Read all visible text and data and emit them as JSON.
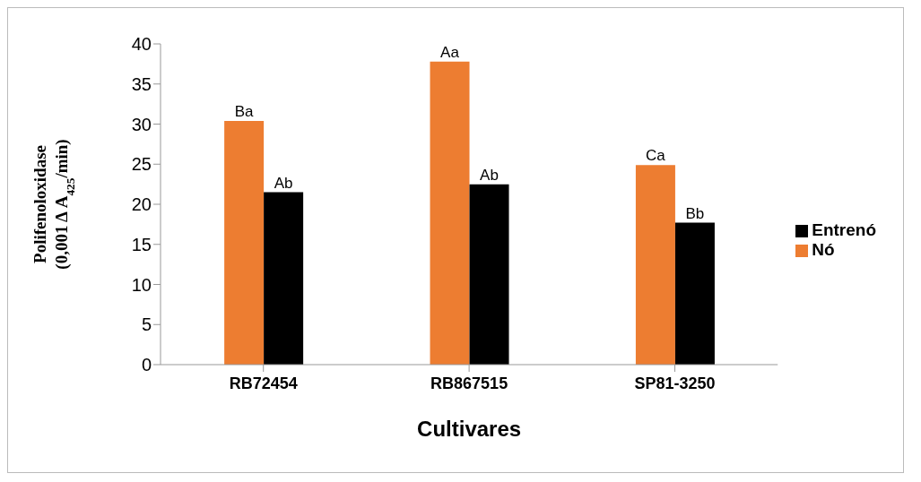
{
  "chart_data": {
    "type": "bar",
    "xlabel": "Cultivares",
    "ylabel": "Polifenoloxidase\n(0,001 Δ A$_{425}$/min)",
    "categories": [
      "RB72454",
      "RB867515",
      "SP81-3250"
    ],
    "series": [
      {
        "name": "Nó",
        "color": "#ed7d31",
        "values": [
          30.4,
          37.8,
          24.9
        ],
        "value_labels": [
          "Ba",
          "Aa",
          "Ca"
        ]
      },
      {
        "name": "Entrenó",
        "color": "#000000",
        "values": [
          21.5,
          22.5,
          17.7
        ],
        "value_labels": [
          "Ab",
          "Ab",
          "Bb"
        ]
      }
    ],
    "ylim": [
      0,
      40
    ],
    "yticks": [
      0,
      5,
      10,
      15,
      20,
      25,
      30,
      35,
      40
    ],
    "grid": false,
    "legend": "right"
  }
}
